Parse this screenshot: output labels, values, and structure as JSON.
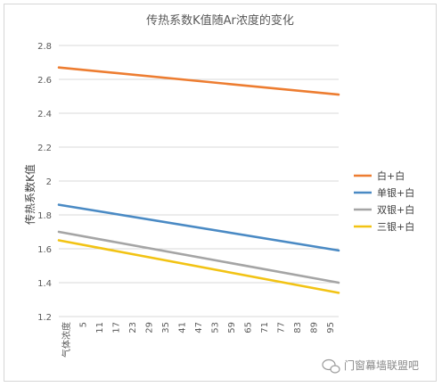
{
  "chart_data": {
    "type": "line",
    "title": "传热系数K值随Ar浓度的变化",
    "xlabel": "",
    "ylabel": "传热系数K值",
    "x_categories_label": "气体浓度",
    "categories": [
      "5",
      "11",
      "17",
      "23",
      "29",
      "35",
      "41",
      "47",
      "53",
      "59",
      "65",
      "71",
      "77",
      "83",
      "89",
      "95"
    ],
    "x_range": [
      0,
      100
    ],
    "ylim": [
      1.2,
      2.8
    ],
    "yticks": [
      "1.2",
      "1.4",
      "1.6",
      "1.8",
      "2",
      "2.2",
      "2.4",
      "2.6",
      "2.8"
    ],
    "grid": "horizontal",
    "legend_position": "right",
    "series": [
      {
        "name": "白+白",
        "color": "#ED7D31",
        "x": [
          0,
          100
        ],
        "y": [
          2.67,
          2.51
        ]
      },
      {
        "name": "单银+白",
        "color": "#4A8AC4",
        "x": [
          0,
          100
        ],
        "y": [
          1.86,
          1.59
        ]
      },
      {
        "name": "双银+白",
        "color": "#A5A5A5",
        "x": [
          0,
          100
        ],
        "y": [
          1.7,
          1.4
        ]
      },
      {
        "name": "三银+白",
        "color": "#F2C314",
        "x": [
          0,
          100
        ],
        "y": [
          1.65,
          1.34
        ]
      }
    ]
  },
  "watermark": {
    "text": "门窗幕墙联盟吧",
    "icon": "wechat-icon"
  }
}
